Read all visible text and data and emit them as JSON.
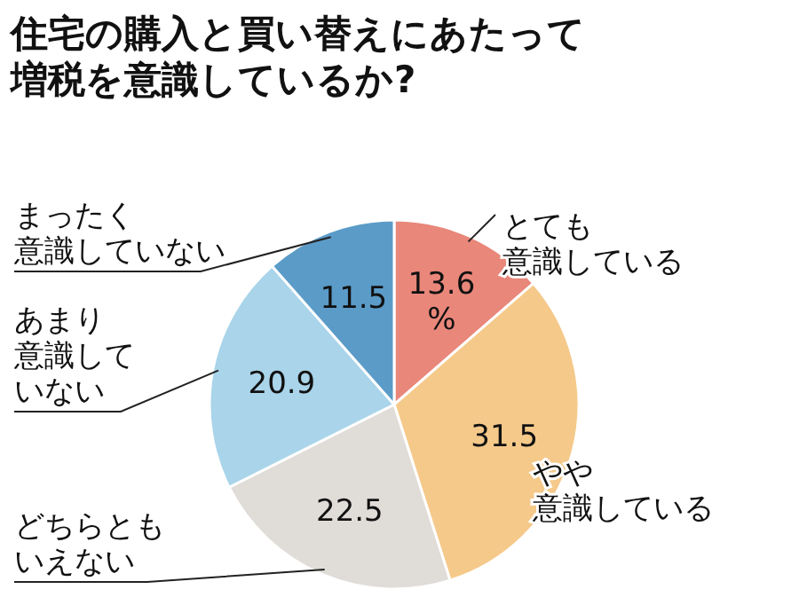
{
  "chart_data": {
    "type": "pie",
    "title": "住宅の購入と買い替えにあたって増税を意識しているか?",
    "categories": [
      "とても意識している",
      "やや意識している",
      "どちらともいえない",
      "あまり意識していない",
      "まったく意識していない"
    ],
    "values": [
      13.6,
      31.5,
      22.5,
      20.9,
      11.5
    ],
    "colors": [
      "#e8877a",
      "#f5c98a",
      "#e0dcd8",
      "#a9d4ea",
      "#5b9bc8"
    ],
    "value_labels": [
      "13.6%",
      "31.5",
      "22.5",
      "20.9",
      "11.5"
    ]
  }
}
